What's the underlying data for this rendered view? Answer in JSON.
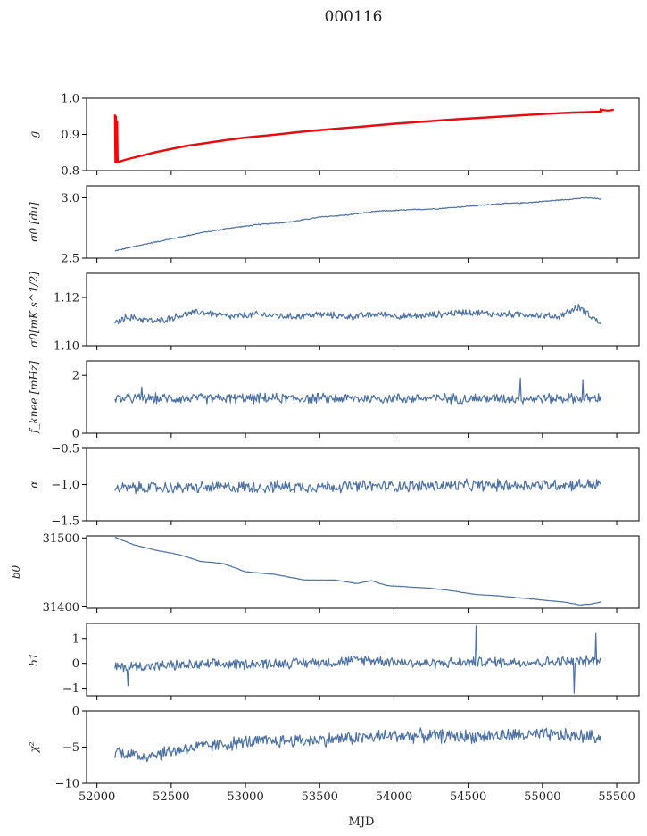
{
  "figure_title": "000116",
  "x_axis_label": "MJD",
  "colors": {
    "series": "#4c72a4",
    "highlight": "#ff0000",
    "axis": "#000000"
  },
  "chart_data": [
    {
      "type": "line",
      "ylabel": "g",
      "ylim": [
        0.8,
        1.0
      ],
      "yticks": [
        "0.8",
        "0.9",
        "1.0"
      ],
      "ytick_values": [
        0.8,
        0.9,
        1.0
      ],
      "series": [
        {
          "values": [
            [
              52121,
              0.823
            ],
            [
              52200,
              0.832
            ],
            [
              52400,
              0.853
            ],
            [
              52600,
              0.87
            ],
            [
              52800,
              0.882
            ],
            [
              53000,
              0.893
            ],
            [
              53200,
              0.901
            ],
            [
              53400,
              0.91
            ],
            [
              53600,
              0.917
            ],
            [
              53800,
              0.924
            ],
            [
              54000,
              0.931
            ],
            [
              54200,
              0.937
            ],
            [
              54400,
              0.943
            ],
            [
              54600,
              0.948
            ],
            [
              54800,
              0.953
            ],
            [
              55000,
              0.958
            ],
            [
              55200,
              0.962
            ],
            [
              55395,
              0.964
            ]
          ]
        },
        {
          "values": [
            [
              52121,
              0.955
            ],
            [
              52124,
              0.823
            ],
            [
              52128,
              0.95
            ],
            [
              52132,
              0.822
            ],
            [
              52136,
              0.935
            ],
            [
              52140,
              0.823
            ],
            [
              52200,
              0.831
            ],
            [
              52400,
              0.851
            ],
            [
              52600,
              0.868
            ],
            [
              52800,
              0.88
            ],
            [
              53000,
              0.891
            ],
            [
              53200,
              0.899
            ],
            [
              53400,
              0.908
            ],
            [
              53600,
              0.915
            ],
            [
              53800,
              0.922
            ],
            [
              54000,
              0.929
            ],
            [
              54200,
              0.935
            ],
            [
              54400,
              0.941
            ],
            [
              54600,
              0.946
            ],
            [
              54800,
              0.951
            ],
            [
              55000,
              0.956
            ],
            [
              55200,
              0.96
            ],
            [
              55390,
              0.963
            ],
            [
              55392,
              0.97
            ],
            [
              55395,
              0.962
            ],
            [
              55400,
              0.968
            ],
            [
              55440,
              0.966
            ],
            [
              55480,
              0.968
            ]
          ]
        }
      ]
    },
    {
      "type": "line",
      "ylabel": "σ0 [du]",
      "ylim": [
        2.5,
        3.1
      ],
      "yticks": [
        "2.5",
        "3.0"
      ],
      "ytick_values": [
        2.5,
        3.0
      ],
      "series": [
        {
          "values": [
            [
              52121,
              2.56
            ],
            [
              52300,
              2.61
            ],
            [
              52500,
              2.66
            ],
            [
              52700,
              2.71
            ],
            [
              52900,
              2.75
            ],
            [
              53100,
              2.78
            ],
            [
              53300,
              2.8
            ],
            [
              53500,
              2.84
            ],
            [
              53700,
              2.86
            ],
            [
              53900,
              2.89
            ],
            [
              54100,
              2.9
            ],
            [
              54300,
              2.91
            ],
            [
              54500,
              2.93
            ],
            [
              54700,
              2.95
            ],
            [
              54900,
              2.96
            ],
            [
              55100,
              2.98
            ],
            [
              55300,
              3.0
            ],
            [
              55395,
              2.99
            ]
          ],
          "noise": 0.004
        }
      ]
    },
    {
      "type": "line",
      "ylabel": "σ0[mK s^1/2]",
      "ylim": [
        1.1,
        1.13
      ],
      "yticks": [
        "1.10",
        "1.12"
      ],
      "ytick_values": [
        1.1,
        1.12
      ],
      "series": [
        {
          "values": [
            [
              52121,
              1.109
            ],
            [
              52200,
              1.112
            ],
            [
              52400,
              1.11
            ],
            [
              52600,
              1.113
            ],
            [
              52700,
              1.114
            ],
            [
              52900,
              1.112
            ],
            [
              53100,
              1.113
            ],
            [
              53300,
              1.112
            ],
            [
              53500,
              1.113
            ],
            [
              53700,
              1.112
            ],
            [
              53900,
              1.113
            ],
            [
              54100,
              1.112
            ],
            [
              54300,
              1.113
            ],
            [
              54500,
              1.114
            ],
            [
              54700,
              1.113
            ],
            [
              54900,
              1.113
            ],
            [
              55100,
              1.112
            ],
            [
              55250,
              1.116
            ],
            [
              55395,
              1.109
            ]
          ],
          "noise": 0.0012
        }
      ]
    },
    {
      "type": "line",
      "ylabel": "f_knee [mHz]",
      "ylim": [
        0,
        2.5
      ],
      "yticks": [
        "0",
        "2"
      ],
      "ytick_values": [
        0,
        2
      ],
      "series": [
        {
          "values": [
            [
              52121,
              1.2
            ],
            [
              55395,
              1.2
            ]
          ],
          "noise": 0.15,
          "spikes": [
            [
              54850,
              1.9
            ],
            [
              55270,
              1.85
            ],
            [
              52300,
              1.6
            ]
          ]
        }
      ]
    },
    {
      "type": "line",
      "ylabel": "α",
      "ylim": [
        -1.5,
        -0.5
      ],
      "yticks": [
        "−1.5",
        "−1.0",
        "−0.5"
      ],
      "ytick_values": [
        -1.5,
        -1.0,
        -0.5
      ],
      "series": [
        {
          "values": [
            [
              52121,
              -1.05
            ],
            [
              55395,
              -1.0
            ]
          ],
          "noise": 0.07
        }
      ]
    },
    {
      "type": "line",
      "ylabel": "b0",
      "ylim": [
        31398,
        31503
      ],
      "yticks": [
        "31400",
        "31500"
      ],
      "ytick_values": [
        31400,
        31500
      ],
      "series": [
        {
          "values": [
            [
              52121,
              31501
            ],
            [
              52250,
              31490
            ],
            [
              52400,
              31482
            ],
            [
              52550,
              31476
            ],
            [
              52700,
              31466
            ],
            [
              52850,
              31463
            ],
            [
              53000,
              31451
            ],
            [
              53200,
              31447
            ],
            [
              53400,
              31439
            ],
            [
              53600,
              31439
            ],
            [
              53750,
              31434
            ],
            [
              53850,
              31438
            ],
            [
              53950,
              31431
            ],
            [
              54100,
              31429
            ],
            [
              54250,
              31427
            ],
            [
              54400,
              31423
            ],
            [
              54550,
              31418
            ],
            [
              54700,
              31416
            ],
            [
              54850,
              31413
            ],
            [
              55000,
              31410
            ],
            [
              55150,
              31407
            ],
            [
              55250,
              31403
            ],
            [
              55320,
              31404
            ],
            [
              55395,
              31407
            ]
          ],
          "noise": 0.3
        }
      ]
    },
    {
      "type": "line",
      "ylabel": "b1",
      "ylim": [
        -1.3,
        1.6
      ],
      "yticks": [
        "−1",
        "0",
        "1"
      ],
      "ytick_values": [
        -1,
        0,
        1
      ],
      "series": [
        {
          "values": [
            [
              52121,
              -0.15
            ],
            [
              52400,
              -0.1
            ],
            [
              52800,
              -0.05
            ],
            [
              53200,
              0.0
            ],
            [
              53600,
              0.05
            ],
            [
              53800,
              0.15
            ],
            [
              54200,
              0.0
            ],
            [
              54600,
              0.05
            ],
            [
              55000,
              0.05
            ],
            [
              55395,
              0.1
            ]
          ],
          "noise": 0.18,
          "spikes": [
            [
              54555,
              1.5
            ],
            [
              55360,
              1.2
            ],
            [
              55215,
              -1.2
            ],
            [
              52210,
              -0.9
            ]
          ]
        }
      ]
    },
    {
      "type": "line",
      "ylabel": "χ²",
      "ylim": [
        -10,
        0
      ],
      "yticks": [
        "−10",
        "−5",
        "0"
      ],
      "ytick_values": [
        -10,
        -5,
        0
      ],
      "series": [
        {
          "values": [
            [
              52121,
              -5.5
            ],
            [
              52300,
              -6.3
            ],
            [
              52600,
              -5.2
            ],
            [
              53000,
              -4.3
            ],
            [
              53500,
              -4.0
            ],
            [
              54000,
              -3.4
            ],
            [
              54500,
              -3.5
            ],
            [
              55000,
              -3.3
            ],
            [
              55395,
              -3.6
            ]
          ],
          "noise": 0.8
        }
      ]
    }
  ],
  "x_axis": {
    "range": [
      51930,
      55650
    ],
    "ticks": [
      "52000",
      "52500",
      "53000",
      "53500",
      "54000",
      "54500",
      "55000",
      "55500"
    ],
    "tick_values": [
      52000,
      52500,
      53000,
      53500,
      54000,
      54500,
      55000,
      55500
    ]
  }
}
